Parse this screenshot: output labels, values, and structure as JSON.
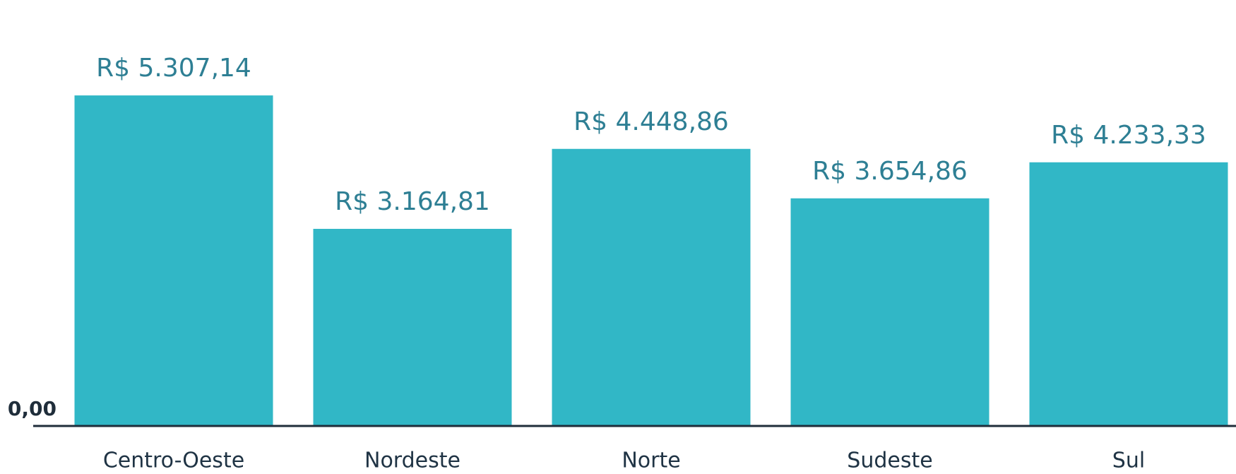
{
  "chart_data": {
    "type": "bar",
    "categories": [
      "Centro-Oeste",
      "Nordeste",
      "Norte",
      "Sudeste",
      "Sul"
    ],
    "values": [
      5307.14,
      3164.81,
      4448.86,
      3654.86,
      4233.33
    ],
    "value_labels": [
      "R$ 5.307,14",
      "R$ 3.164,81",
      "R$ 4.448,86",
      "R$ 3.654,86",
      "R$ 4.233,33"
    ],
    "color": "#31b7c6",
    "ylim": [
      0,
      6000
    ],
    "yticks": [
      {
        "value": 0,
        "label": "0,00"
      }
    ],
    "grid": false
  }
}
